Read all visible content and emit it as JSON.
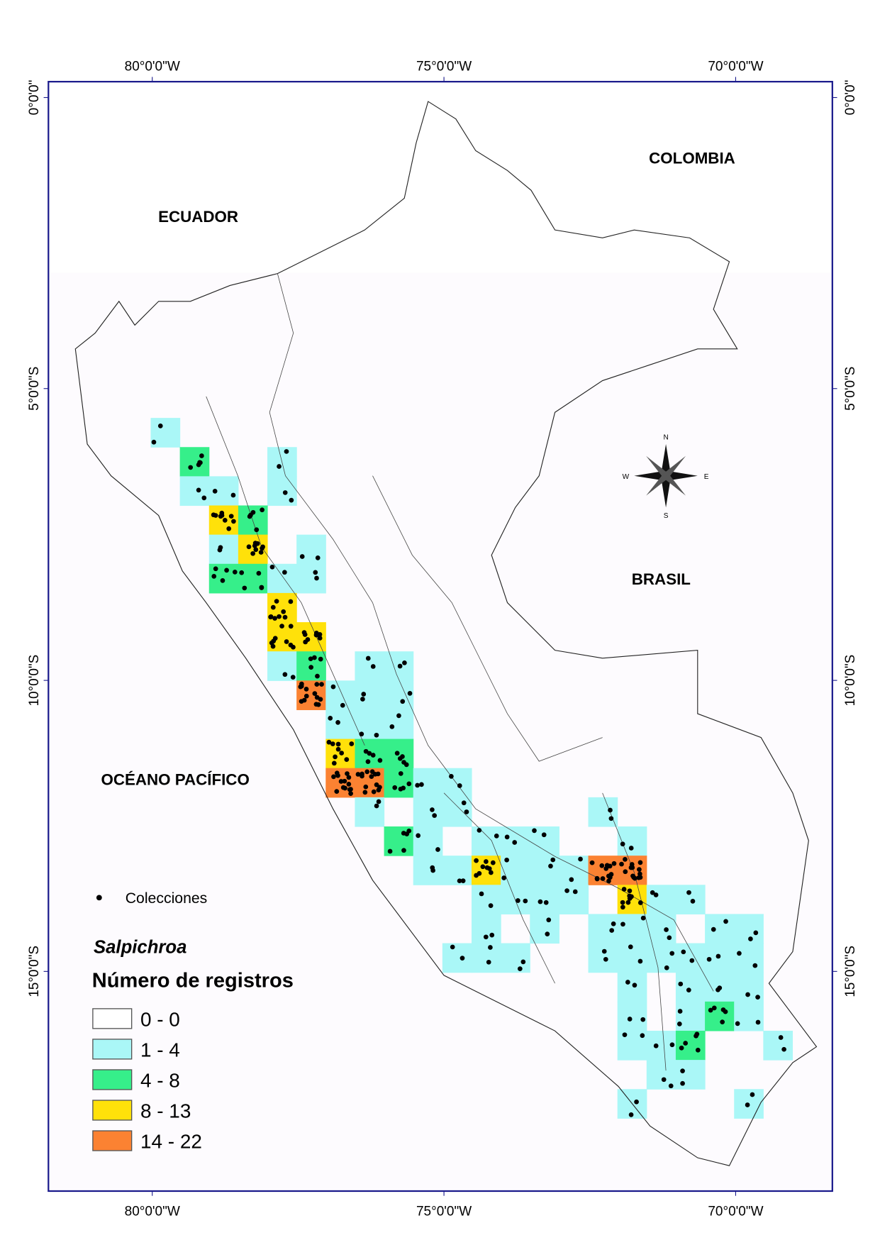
{
  "map": {
    "lon_labels": [
      "80°0'0\"W",
      "75°0'0\"W",
      "70°0'0\"W"
    ],
    "lat_labels": [
      "0°0'0\"",
      "5°0'0\"S",
      "10°0'0\"S",
      "15°0'0\"S"
    ],
    "regions": [
      {
        "label": "ECUADOR"
      },
      {
        "label": "COLOMBIA"
      },
      {
        "label": "BRASIL"
      },
      {
        "label": "OCÉANO PACÍFICO"
      }
    ],
    "compass": {
      "n": "N",
      "s": "S",
      "e": "E",
      "w": "W"
    },
    "legend": {
      "points": "Colecciones",
      "genus": "Salpichroa",
      "title": "Número de registros",
      "classes": [
        {
          "label": "0 - 0",
          "color": "#ffffff"
        },
        {
          "label": "1 - 4",
          "color": "#aaf7f7"
        },
        {
          "label": "4 - 8",
          "color": "#36ef8a"
        },
        {
          "label": "8 - 13",
          "color": "#ffe10a"
        },
        {
          "label": "14 - 22",
          "color": "#fb8232"
        }
      ]
    }
  }
}
